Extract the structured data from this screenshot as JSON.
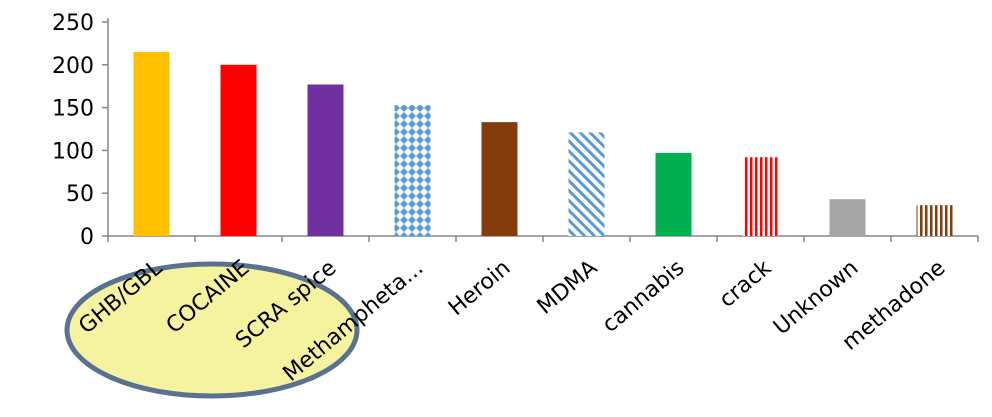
{
  "chart_data": {
    "type": "bar",
    "categories": [
      "GHB/GBL",
      "COCAINE",
      "SCRA spice",
      "Methampheta...",
      "Heroin",
      "MDMA",
      "cannabis",
      "crack",
      "Unknown",
      "methadone"
    ],
    "values": [
      215,
      200,
      177,
      153,
      133,
      121,
      97,
      92,
      43,
      36
    ],
    "ylim": [
      0,
      250
    ],
    "yticks": [
      0,
      50,
      100,
      150,
      200,
      250
    ],
    "grid": false,
    "legend": "none",
    "bar_styles": [
      {
        "color": "#FFC000",
        "pattern": "solid"
      },
      {
        "color": "#FF0000",
        "pattern": "solid"
      },
      {
        "color": "#7030A0",
        "pattern": "solid"
      },
      {
        "color": "#5B9BD5",
        "pattern": "diamond"
      },
      {
        "color": "#843C0C",
        "pattern": "solid"
      },
      {
        "color": "#5B9BD5",
        "pattern": "diagonal"
      },
      {
        "color": "#00B050",
        "pattern": "solid"
      },
      {
        "color": "#FF0000",
        "pattern": "vertical"
      },
      {
        "color": "#A5A5A5",
        "pattern": "solid"
      },
      {
        "color": "#843C0C",
        "pattern": "vertical"
      }
    ],
    "highlight": {
      "categories": [
        "GHB/GBL",
        "COCAINE",
        "SCRA spice"
      ],
      "fill": "#F5F3A0",
      "stroke": "#5A7290"
    }
  }
}
